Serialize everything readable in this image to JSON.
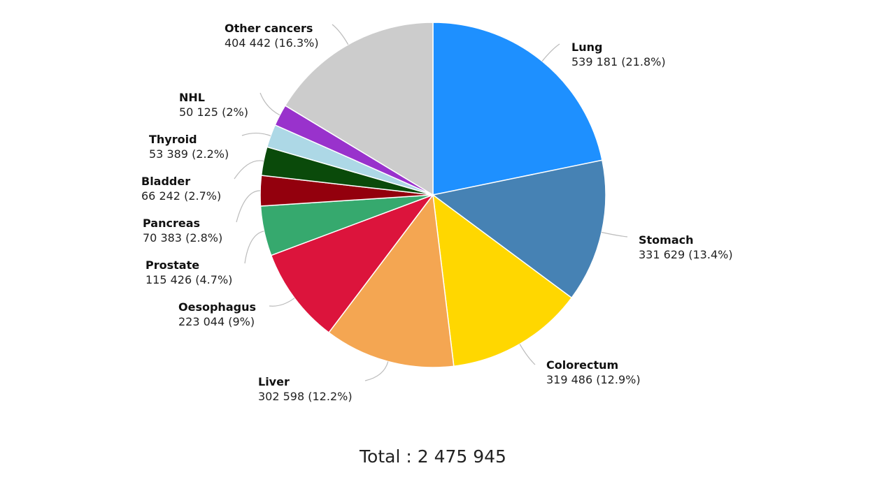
{
  "chart_data": {
    "type": "pie",
    "start_angle": "top, clockwise",
    "slices": [
      {
        "label": "Lung",
        "value": 539181,
        "value_text": "539 181 (21.8%)",
        "percent": 21.8,
        "color": "#1E90FF"
      },
      {
        "label": "Stomach",
        "value": 331629,
        "value_text": "331 629 (13.4%)",
        "percent": 13.4,
        "color": "#4682B4"
      },
      {
        "label": "Colorectum",
        "value": 319486,
        "value_text": "319 486 (12.9%)",
        "percent": 12.9,
        "color": "#FFD700"
      },
      {
        "label": "Liver",
        "value": 302598,
        "value_text": "302 598 (12.2%)",
        "percent": 12.2,
        "color": "#F4A652"
      },
      {
        "label": "Oesophagus",
        "value": 223044,
        "value_text": "223 044 (9%)",
        "percent": 9,
        "color": "#DC143C"
      },
      {
        "label": "Prostate",
        "value": 115426,
        "value_text": "115 426 (4.7%)",
        "percent": 4.7,
        "color": "#36A96E"
      },
      {
        "label": "Pancreas",
        "value": 70383,
        "value_text": "70 383 (2.8%)",
        "percent": 2.8,
        "color": "#93000D"
      },
      {
        "label": "Bladder",
        "value": 66242,
        "value_text": "66 242 (2.7%)",
        "percent": 2.7,
        "color": "#0A4A0A"
      },
      {
        "label": "Thyroid",
        "value": 53389,
        "value_text": "53 389 (2.2%)",
        "percent": 2.2,
        "color": "#ADD8E6"
      },
      {
        "label": "NHL",
        "value": 50125,
        "value_text": "50 125 (2%)",
        "percent": 2,
        "color": "#9932CC"
      },
      {
        "label": "Other cancers",
        "value": 404442,
        "value_text": "404 442 (16.3%)",
        "percent": 16.3,
        "color": "#CCCCCC"
      }
    ],
    "total_text": "Total : 2 475 945"
  }
}
